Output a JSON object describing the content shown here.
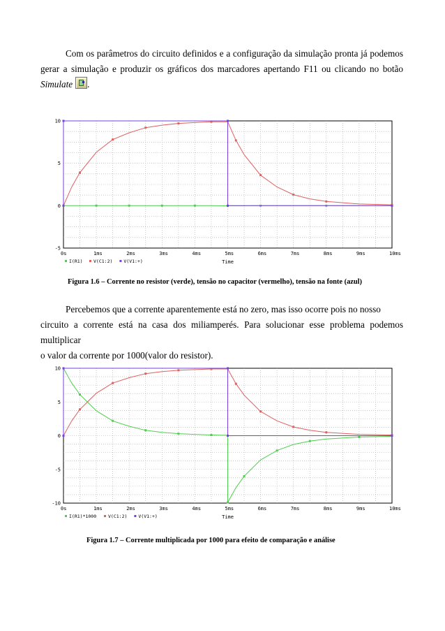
{
  "paragraph1": {
    "line1": "Com os parâmetros do circuito definidos e a configuração da simulação pronta já podemos",
    "line2": "gerar a simulação e produzir os gráficos dos marcadores apertando F11 ou clicando no botão",
    "line3_italic": "Simulate",
    "line3_end": "."
  },
  "figure1": {
    "caption": "Figura 1.6 – Corrente no resistor (verde), tensão no capacitor (vermelho), tensão na fonte (azul)"
  },
  "paragraph2": {
    "line1": "Percebemos que a corrente aparentemente está no zero, mas isso ocorre pois no nosso",
    "line2": "circuito a corrente está na casa dos miliamperés. Para solucionar esse problema podemos multiplicar",
    "line3": "o valor da corrente por 1000(valor do resistor)."
  },
  "figure2": {
    "caption": "Figura 1.7 – Corrente multiplicada por 1000 para efeito de comparação e análise"
  },
  "chart_data": [
    {
      "type": "line",
      "title": "",
      "xlabel": "Time",
      "ylabel": "",
      "xlim": [
        0,
        10
      ],
      "ylim": [
        -5,
        10
      ],
      "x_tick_labels": [
        "0s",
        "1ms",
        "2ms",
        "3ms",
        "4ms",
        "5ms",
        "6ms",
        "7ms",
        "8ms",
        "9ms",
        "10ms"
      ],
      "y_tick_labels": [
        "10",
        "5",
        "0",
        "-5"
      ],
      "grid": true,
      "legend": [
        "I(R1)",
        "V(C1:2)",
        "V(V1:+)"
      ],
      "series": [
        {
          "name": "I(R1)",
          "color": "#4fcf4f",
          "x": [
            0,
            0.5,
            1,
            1.5,
            2,
            2.5,
            3,
            3.5,
            4,
            4.5,
            5,
            5.5,
            6,
            7,
            8,
            9,
            10
          ],
          "values": [
            0.01,
            0.01,
            0.01,
            0.01,
            0.01,
            0.01,
            0.01,
            0.01,
            0.01,
            0.01,
            -0.01,
            -0.01,
            0,
            0,
            0,
            0,
            0
          ]
        },
        {
          "name": "V(C1:2)",
          "color": "#e06060",
          "x": [
            0,
            0.25,
            0.5,
            1,
            1.5,
            2,
            2.5,
            3,
            3.5,
            4,
            4.5,
            5,
            5.25,
            5.5,
            6,
            6.5,
            7,
            7.5,
            8,
            9,
            10
          ],
          "values": [
            0,
            2.2,
            3.9,
            6.3,
            7.8,
            8.6,
            9.2,
            9.5,
            9.7,
            9.8,
            9.9,
            9.9,
            7.7,
            6.0,
            3.6,
            2.2,
            1.3,
            0.8,
            0.5,
            0.2,
            0.1
          ]
        },
        {
          "name": "V(V1:+)",
          "color": "#7a3fe0",
          "x": [
            0,
            0,
            5,
            5,
            10
          ],
          "values": [
            0,
            10,
            10,
            0,
            0
          ]
        }
      ]
    },
    {
      "type": "line",
      "title": "",
      "xlabel": "Time",
      "ylabel": "",
      "xlim": [
        0,
        10
      ],
      "ylim": [
        -10,
        10
      ],
      "x_tick_labels": [
        "0s",
        "1ms",
        "2ms",
        "3ms",
        "4ms",
        "5ms",
        "6ms",
        "7ms",
        "8ms",
        "9ms",
        "10ms"
      ],
      "y_tick_labels": [
        "10",
        "5",
        "0",
        "-5",
        "-10"
      ],
      "grid": true,
      "legend": [
        "I(R1)*1000",
        "V(C1:2)",
        "V(V1:+)"
      ],
      "series": [
        {
          "name": "I(R1)*1000",
          "color": "#4fcf4f",
          "x": [
            0,
            0.25,
            0.5,
            1,
            1.5,
            2,
            2.5,
            3,
            3.5,
            4,
            4.5,
            5,
            5,
            5.25,
            5.5,
            6,
            6.5,
            7,
            7.5,
            8,
            9,
            10
          ],
          "values": [
            10,
            7.8,
            6.1,
            3.7,
            2.2,
            1.4,
            0.8,
            0.5,
            0.3,
            0.2,
            0.1,
            0.05,
            -9.9,
            -7.7,
            -6.0,
            -3.6,
            -2.2,
            -1.3,
            -0.8,
            -0.5,
            -0.2,
            -0.1
          ]
        },
        {
          "name": "V(C1:2)",
          "color": "#e06060",
          "x": [
            0,
            0.25,
            0.5,
            1,
            1.5,
            2,
            2.5,
            3,
            3.5,
            4,
            4.5,
            5,
            5.25,
            5.5,
            6,
            6.5,
            7,
            7.5,
            8,
            9,
            10
          ],
          "values": [
            0,
            2.2,
            3.9,
            6.3,
            7.8,
            8.6,
            9.2,
            9.5,
            9.7,
            9.8,
            9.9,
            9.9,
            7.7,
            6.0,
            3.6,
            2.2,
            1.3,
            0.8,
            0.5,
            0.2,
            0.1
          ]
        },
        {
          "name": "V(V1:+)",
          "color": "#7a3fe0",
          "x": [
            0,
            0,
            5,
            5,
            10
          ],
          "values": [
            0,
            10,
            10,
            0,
            0
          ]
        }
      ]
    }
  ]
}
